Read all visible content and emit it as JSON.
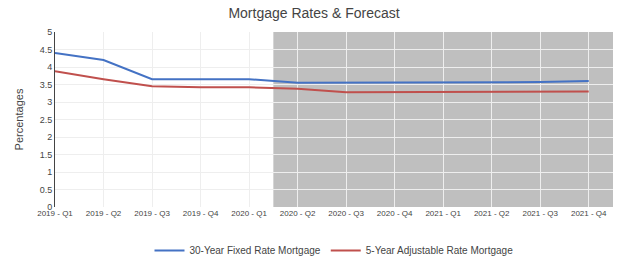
{
  "chart_data": {
    "type": "line",
    "title": "Mortgage Rates & Forecast",
    "y_label": "Percentages",
    "categories": [
      "2019 - Q1",
      "2019 - Q2",
      "2019 - Q3",
      "2019 - Q4",
      "2020 - Q1",
      "2020 - Q2",
      "2020 - Q3",
      "2020 - Q4",
      "2021 - Q1",
      "2021 - Q2",
      "2021 - Q3",
      "2021 - Q4"
    ],
    "series": [
      {
        "name": "30-Year Fixed Rate Mortgage",
        "color": "#4472C4",
        "values": [
          4.4,
          4.2,
          3.65,
          3.65,
          3.65,
          3.55,
          3.55,
          3.55,
          3.55,
          3.55,
          3.57,
          3.6
        ]
      },
      {
        "name": "5-Year Adjustable Rate Mortgage",
        "color": "#C0504D",
        "values": [
          3.88,
          3.65,
          3.45,
          3.42,
          3.42,
          3.38,
          3.28,
          3.28,
          3.28,
          3.28,
          3.28,
          3.3
        ]
      }
    ],
    "ylim": [
      0,
      5
    ],
    "yticks": [
      0,
      0.5,
      1,
      1.5,
      2,
      2.5,
      3,
      3.5,
      4,
      4.5,
      5
    ],
    "grid": true,
    "legend": "bottom",
    "highlight": {
      "from": "2020 - Q2",
      "to": "2021 - Q4",
      "color": "#BFBFBF"
    }
  }
}
